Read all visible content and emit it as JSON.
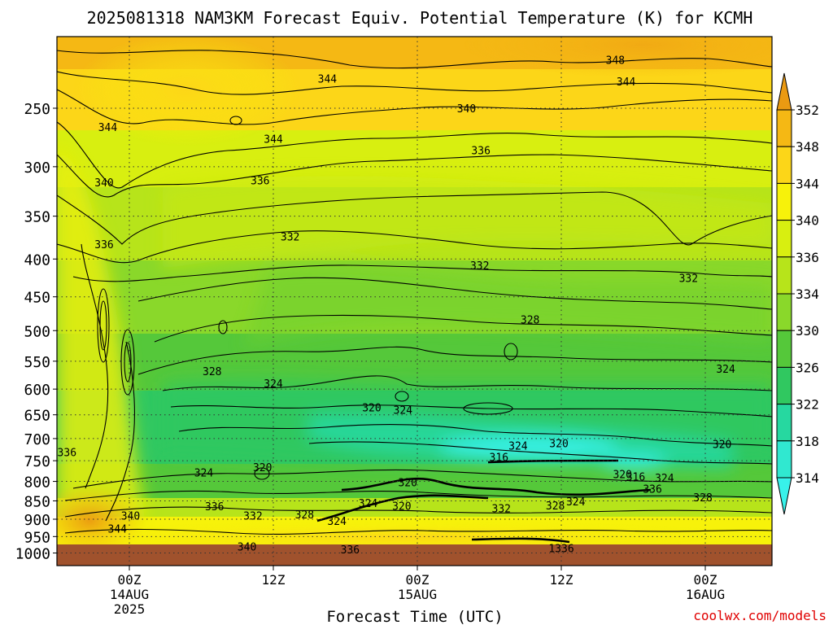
{
  "chart_data": {
    "type": "heatmap",
    "title": "2025081318 NAM3KM Forecast Equiv. Potential Temperature (K) for KCMH",
    "xlabel": "Forecast Time (UTC)",
    "ylabel": "",
    "credit": "coolwx.com/models",
    "y_axis": {
      "scale": "pressure",
      "ticks": [
        250,
        300,
        350,
        400,
        450,
        500,
        550,
        600,
        650,
        700,
        750,
        800,
        850,
        900,
        950,
        1000
      ],
      "ylim": [
        1000,
        200
      ]
    },
    "x_axis": {
      "xlim_hours": [
        18,
        66
      ],
      "ticks": [
        {
          "hour": 24,
          "lines": [
            "00Z",
            "14AUG",
            "2025"
          ]
        },
        {
          "hour": 36,
          "lines": [
            "12Z"
          ]
        },
        {
          "hour": 48,
          "lines": [
            "00Z",
            "15AUG"
          ]
        },
        {
          "hour": 60,
          "lines": [
            "12Z"
          ]
        },
        {
          "hour": 72,
          "lines": [
            "00Z",
            "16AUG"
          ]
        }
      ]
    },
    "grid": "dotted",
    "colorbar": {
      "labels": [
        "352",
        "348",
        "344",
        "340",
        "336",
        "334",
        "330",
        "326",
        "322",
        "318",
        "314"
      ],
      "colors": [
        "#eb9a12",
        "#f5b814",
        "#fcd618",
        "#f7f20a",
        "#d8ef10",
        "#b7e41a",
        "#8ad82a",
        "#55c83a",
        "#30c860",
        "#26d8a0",
        "#30e8d0",
        "#38f2ea"
      ]
    },
    "contour_labels": [
      {
        "text": "348",
        "hour": 64.5,
        "p": 215
      },
      {
        "text": "344",
        "hour": 40.5,
        "p": 228
      },
      {
        "text": "344",
        "hour": 65.4,
        "p": 230
      },
      {
        "text": "344",
        "hour": 22.2,
        "p": 265
      },
      {
        "text": "344",
        "hour": 36.0,
        "p": 275
      },
      {
        "text": "340",
        "hour": 52.1,
        "p": 250
      },
      {
        "text": "340",
        "hour": 21.9,
        "p": 315
      },
      {
        "text": "336",
        "hour": 53.3,
        "p": 285
      },
      {
        "text": "336",
        "hour": 34.9,
        "p": 313
      },
      {
        "text": "336",
        "hour": 21.9,
        "p": 382
      },
      {
        "text": "336",
        "hour": 18.8,
        "p": 730
      },
      {
        "text": "332",
        "hour": 37.4,
        "p": 373
      },
      {
        "text": "332",
        "hour": 53.2,
        "p": 408
      },
      {
        "text": "332",
        "hour": 70.6,
        "p": 424
      },
      {
        "text": "328",
        "hour": 57.4,
        "p": 483
      },
      {
        "text": "328",
        "hour": 30.9,
        "p": 567
      },
      {
        "text": "324",
        "hour": 36.0,
        "p": 589
      },
      {
        "text": "324",
        "hour": 73.7,
        "p": 563
      },
      {
        "text": "320",
        "hour": 44.2,
        "p": 635
      },
      {
        "text": "324",
        "hour": 46.8,
        "p": 640
      },
      {
        "text": "324",
        "hour": 56.4,
        "p": 715
      },
      {
        "text": "320",
        "hour": 59.8,
        "p": 710
      },
      {
        "text": "320",
        "hour": 73.4,
        "p": 712
      },
      {
        "text": "316",
        "hour": 54.8,
        "p": 741
      },
      {
        "text": "320",
        "hour": 35.1,
        "p": 765
      },
      {
        "text": "324",
        "hour": 30.2,
        "p": 778
      },
      {
        "text": "320",
        "hour": 47.2,
        "p": 802
      },
      {
        "text": "320",
        "hour": 65.1,
        "p": 782
      },
      {
        "text": "316",
        "hour": 66.2,
        "p": 788
      },
      {
        "text": "324",
        "hour": 68.6,
        "p": 791
      },
      {
        "text": "324",
        "hour": 61.2,
        "p": 851
      },
      {
        "text": "328",
        "hour": 59.5,
        "p": 862
      },
      {
        "text": "328",
        "hour": 71.8,
        "p": 840
      },
      {
        "text": "336",
        "hour": 67.6,
        "p": 818
      },
      {
        "text": "332",
        "hour": 55.0,
        "p": 870
      },
      {
        "text": "324",
        "hour": 43.9,
        "p": 856
      },
      {
        "text": "320",
        "hour": 46.7,
        "p": 863
      },
      {
        "text": "336",
        "hour": 31.1,
        "p": 864
      },
      {
        "text": "332",
        "hour": 34.3,
        "p": 890
      },
      {
        "text": "328",
        "hour": 38.6,
        "p": 886
      },
      {
        "text": "324",
        "hour": 41.3,
        "p": 905
      },
      {
        "text": "340",
        "hour": 24.1,
        "p": 890
      },
      {
        "text": "344",
        "hour": 23.0,
        "p": 927
      },
      {
        "text": "340",
        "hour": 33.8,
        "p": 980
      },
      {
        "text": "336",
        "hour": 42.4,
        "p": 988
      },
      {
        "text": "1336",
        "hour": 60.0,
        "p": 985
      }
    ],
    "surface": {
      "fill": "#a0522d",
      "p_top": 977
    }
  }
}
